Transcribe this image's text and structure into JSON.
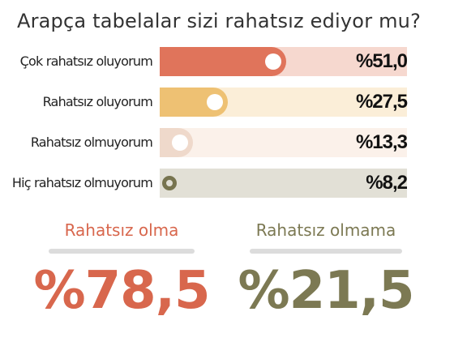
{
  "title": "Arapça tabelalar sizi rahatsız ediyor mu?",
  "colors": {
    "row1": "#e0745b",
    "row1_bg": "#f6d8cf",
    "row2": "#eec173",
    "row2_bg": "#fbeed8",
    "row3": "#efd9cb",
    "row3_bg": "#fbf1ea",
    "row4": "#77744f",
    "row4_bg": "#e2e0d6",
    "orange_text": "#d8674d",
    "olive_text": "#7c7953"
  },
  "chart_data": {
    "type": "bar",
    "categories": [
      "Çok rahatsız oluyorum",
      "Rahatsız oluyorum",
      "Rahatsız olmuyorum",
      "Hiç rahatsız olmuyorum"
    ],
    "values": [
      51.0,
      27.5,
      13.3,
      8.2
    ],
    "value_labels": [
      "%51,0",
      "%27,5",
      "%13,3",
      "%8,2"
    ],
    "ylim": [
      0,
      100
    ]
  },
  "summary": {
    "left": {
      "label": "Rahatsız olma",
      "value": "%78,5"
    },
    "right": {
      "label": "Rahatsız olmama",
      "value": "%21,5"
    }
  }
}
